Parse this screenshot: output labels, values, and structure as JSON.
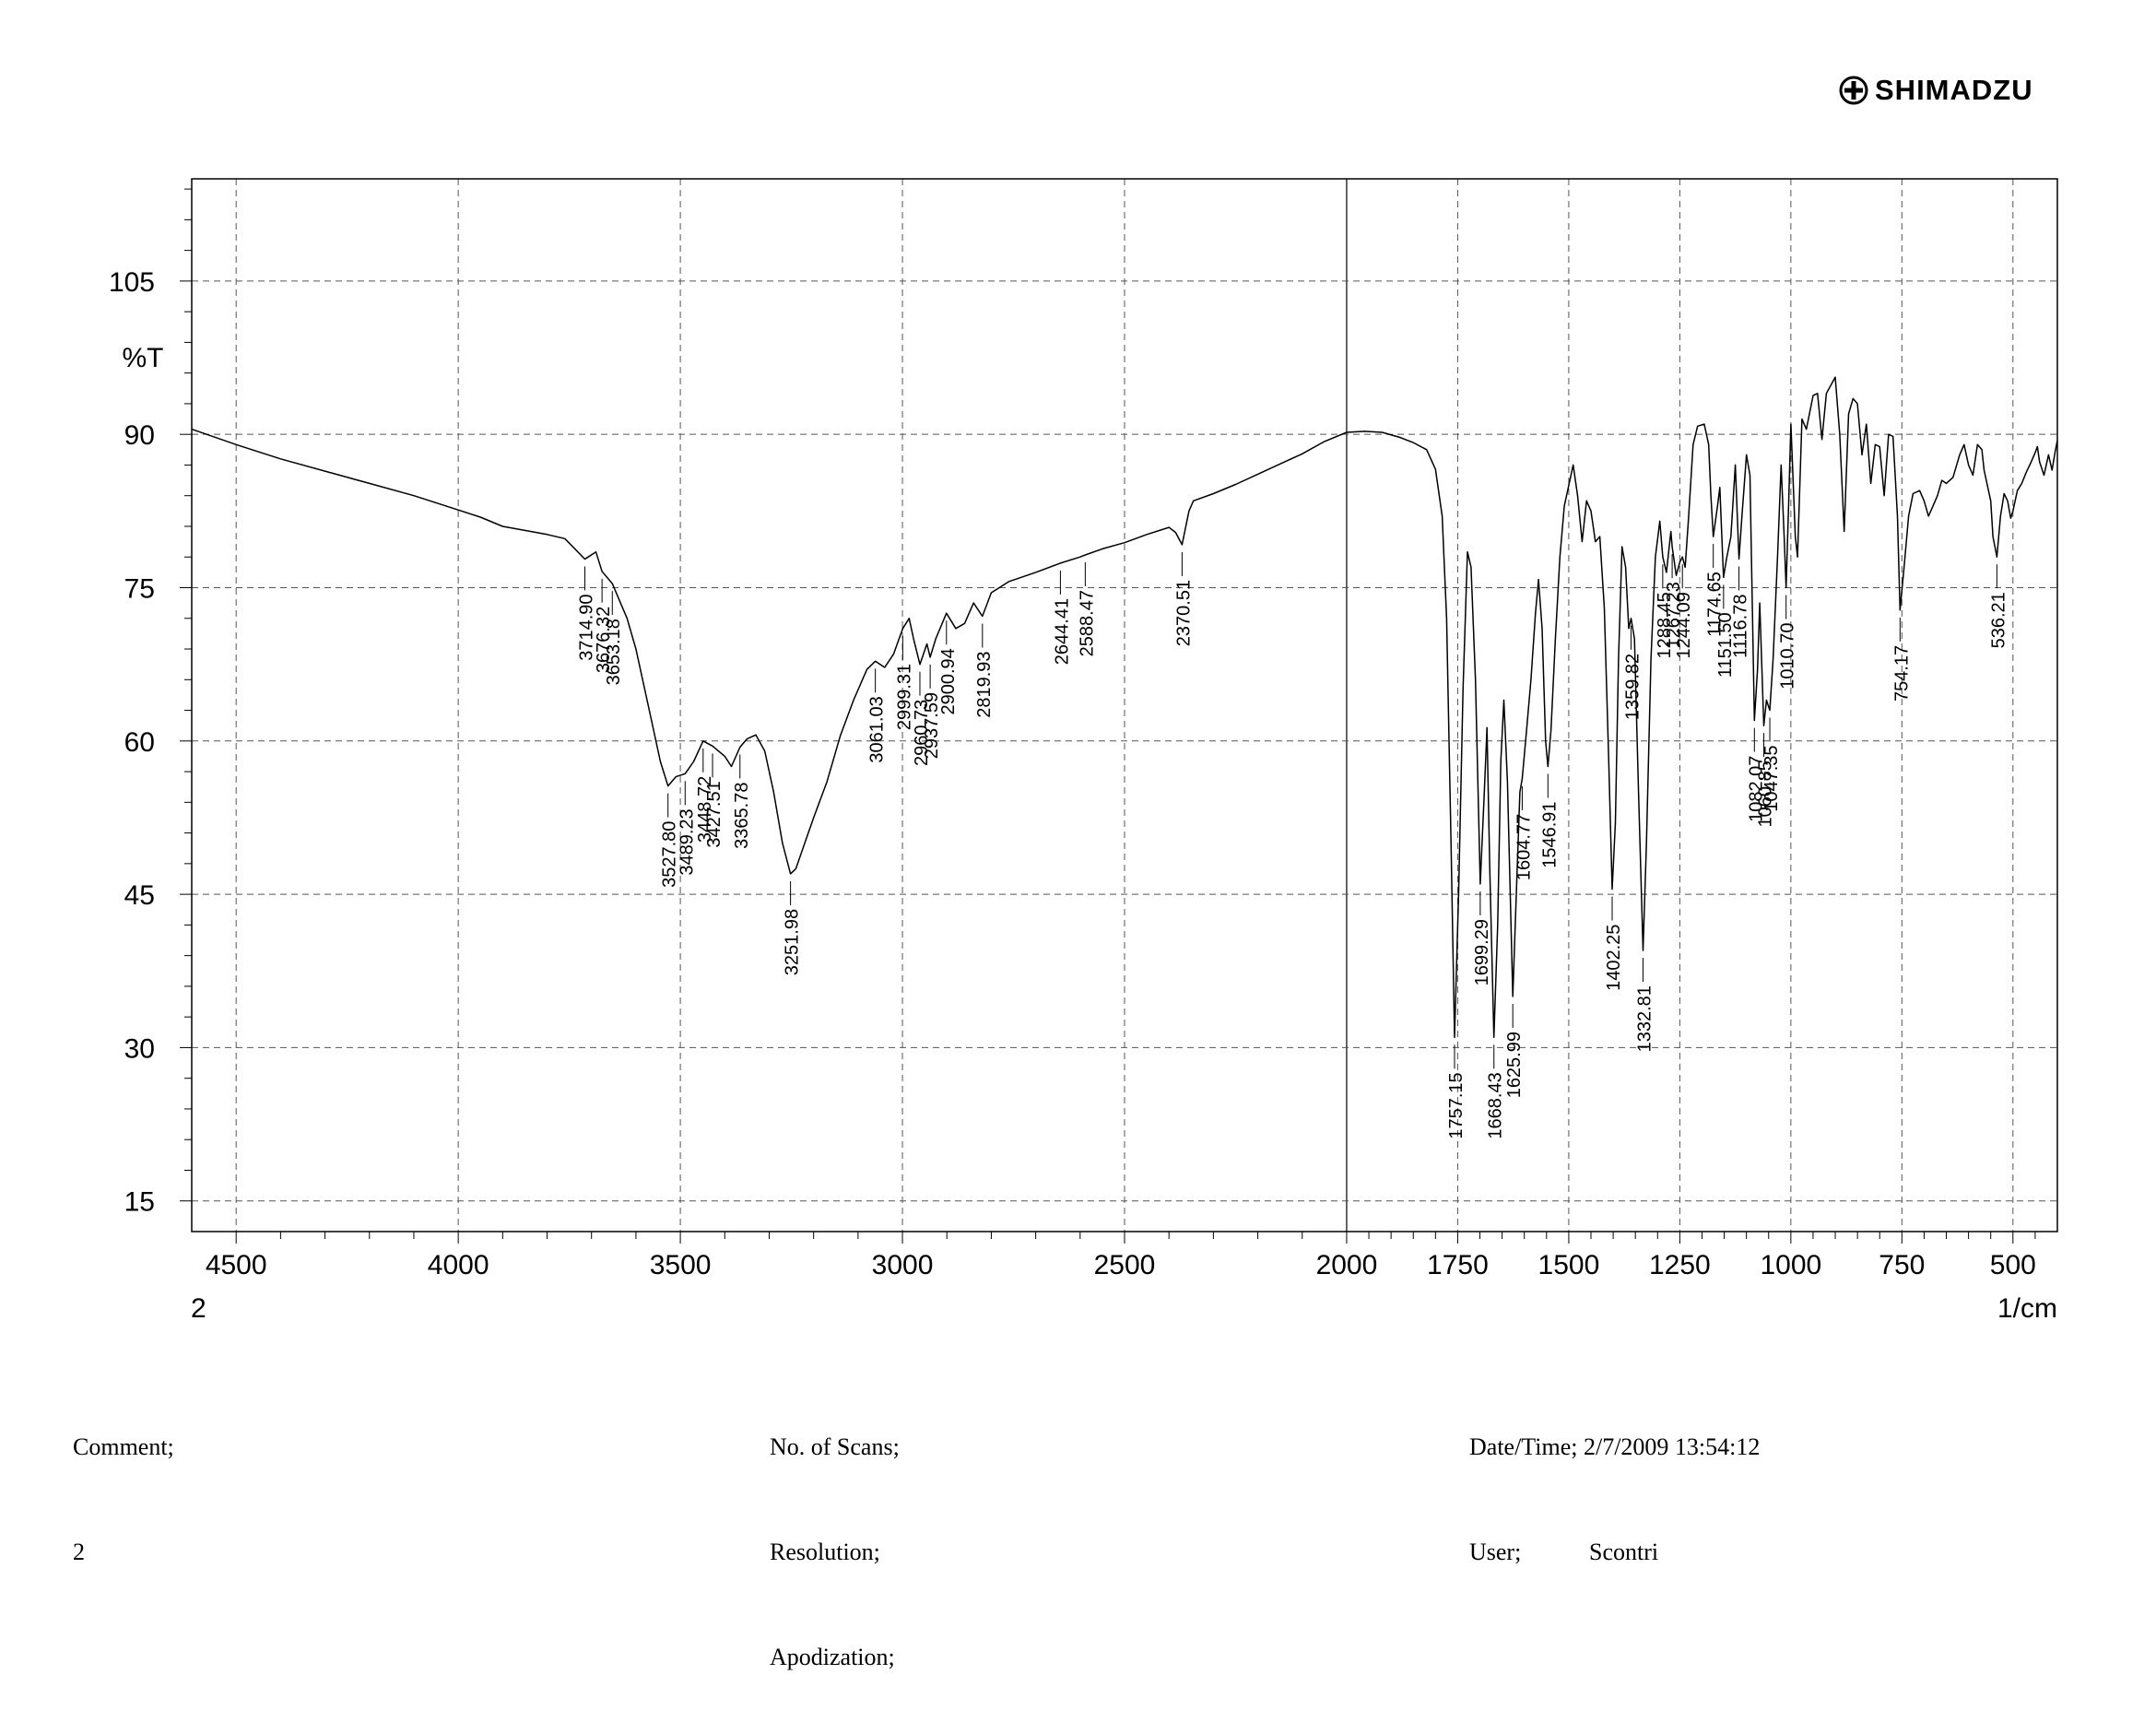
{
  "brand": {
    "name": "SHIMADZU"
  },
  "footer": {
    "comment_label": "Comment;",
    "comment_value": "2",
    "scans_label": "No. of Scans;",
    "resolution_label": "Resolution;",
    "apodization_label": "Apodization;",
    "datetime_label": "Date/Time;",
    "datetime_value": "2/7/2009 13:54:12",
    "user_label": "User;",
    "user_value": "Scontri"
  },
  "chart_data": {
    "type": "line",
    "title": "",
    "xlabel": "1/cm",
    "ylabel": "%T",
    "sample_label": "2",
    "xlim": [
      4600,
      400
    ],
    "ylim": [
      12,
      115
    ],
    "x_reversed": true,
    "grid": true,
    "grid_style": "dashed",
    "x_ticks": [
      4500,
      4000,
      3500,
      3000,
      2500,
      2000,
      1750,
      1500,
      1250,
      1000,
      750,
      500
    ],
    "y_ticks": [
      15,
      30,
      45,
      60,
      75,
      90,
      105
    ],
    "series": [
      {
        "points": [
          [
            4600,
            90.5
          ],
          [
            4500,
            89
          ],
          [
            4400,
            87.6
          ],
          [
            4300,
            86.4
          ],
          [
            4200,
            85.2
          ],
          [
            4100,
            84
          ],
          [
            4000,
            82.6
          ],
          [
            3950,
            81.9
          ],
          [
            3900,
            81
          ],
          [
            3850,
            80.6
          ],
          [
            3800,
            80.2
          ],
          [
            3760,
            79.8
          ],
          [
            3714.9,
            77.8
          ],
          [
            3690,
            78.5
          ],
          [
            3676.32,
            76.6
          ],
          [
            3653.18,
            75.4
          ],
          [
            3620,
            72
          ],
          [
            3600,
            69
          ],
          [
            3570,
            63
          ],
          [
            3545,
            58
          ],
          [
            3527.8,
            55.6
          ],
          [
            3510,
            56.5
          ],
          [
            3489.23,
            56.8
          ],
          [
            3470,
            58
          ],
          [
            3448.72,
            60
          ],
          [
            3427.51,
            59.5
          ],
          [
            3400,
            58.5
          ],
          [
            3385,
            57.5
          ],
          [
            3365.78,
            59.4
          ],
          [
            3350,
            60.2
          ],
          [
            3330,
            60.6
          ],
          [
            3310,
            59
          ],
          [
            3290,
            55
          ],
          [
            3270,
            50
          ],
          [
            3251.98,
            47
          ],
          [
            3240,
            47.5
          ],
          [
            3220,
            50
          ],
          [
            3200,
            52.5
          ],
          [
            3170,
            56
          ],
          [
            3140,
            60.5
          ],
          [
            3110,
            64
          ],
          [
            3080,
            67
          ],
          [
            3061.03,
            67.8
          ],
          [
            3040,
            67.2
          ],
          [
            3020,
            68.5
          ],
          [
            2999.31,
            71
          ],
          [
            2985,
            72
          ],
          [
            2975,
            70
          ],
          [
            2960.73,
            67.5
          ],
          [
            2945,
            69.5
          ],
          [
            2937.59,
            68.2
          ],
          [
            2925,
            70
          ],
          [
            2900.94,
            72.5
          ],
          [
            2880,
            71
          ],
          [
            2860,
            71.5
          ],
          [
            2840,
            73.5
          ],
          [
            2819.93,
            72.2
          ],
          [
            2800,
            74.5
          ],
          [
            2760,
            75.6
          ],
          [
            2700,
            76.5
          ],
          [
            2644.41,
            77.4
          ],
          [
            2600,
            78
          ],
          [
            2588.47,
            78.2
          ],
          [
            2550,
            78.8
          ],
          [
            2500,
            79.4
          ],
          [
            2450,
            80.2
          ],
          [
            2400,
            80.9
          ],
          [
            2385,
            80.4
          ],
          [
            2370.51,
            79.2
          ],
          [
            2355,
            82.5
          ],
          [
            2345,
            83.5
          ],
          [
            2300,
            84.2
          ],
          [
            2250,
            85.1
          ],
          [
            2200,
            86.1
          ],
          [
            2150,
            87.1
          ],
          [
            2100,
            88.1
          ],
          [
            2050,
            89.3
          ],
          [
            2000,
            90.2
          ],
          [
            1960,
            90.3
          ],
          [
            1920,
            90.2
          ],
          [
            1880,
            89.7
          ],
          [
            1850,
            89.2
          ],
          [
            1820,
            88.5
          ],
          [
            1800,
            86.6
          ],
          [
            1785,
            82
          ],
          [
            1775,
            72
          ],
          [
            1765,
            50
          ],
          [
            1757.15,
            31
          ],
          [
            1748,
            45
          ],
          [
            1738,
            65
          ],
          [
            1728,
            78.5
          ],
          [
            1720,
            77
          ],
          [
            1710,
            66
          ],
          [
            1699.29,
            46
          ],
          [
            1690,
            55
          ],
          [
            1684,
            61.3
          ],
          [
            1678,
            48
          ],
          [
            1668.43,
            31
          ],
          [
            1660,
            42
          ],
          [
            1653,
            58
          ],
          [
            1646,
            64
          ],
          [
            1638,
            56
          ],
          [
            1625.99,
            35
          ],
          [
            1618,
            45
          ],
          [
            1610,
            55
          ],
          [
            1604.77,
            56.3
          ],
          [
            1595,
            61
          ],
          [
            1585,
            66
          ],
          [
            1575,
            72.5
          ],
          [
            1568,
            75.8
          ],
          [
            1560,
            71
          ],
          [
            1552,
            60
          ],
          [
            1546.91,
            57.5
          ],
          [
            1540,
            61
          ],
          [
            1530,
            70
          ],
          [
            1520,
            78
          ],
          [
            1510,
            83
          ],
          [
            1500,
            85
          ],
          [
            1490,
            87
          ],
          [
            1480,
            84
          ],
          [
            1470,
            79.5
          ],
          [
            1460,
            83.5
          ],
          [
            1450,
            82.5
          ],
          [
            1440,
            79.5
          ],
          [
            1430,
            80
          ],
          [
            1420,
            73
          ],
          [
            1410,
            58
          ],
          [
            1402.25,
            45.5
          ],
          [
            1395,
            52
          ],
          [
            1388,
            68
          ],
          [
            1380,
            79
          ],
          [
            1372,
            77
          ],
          [
            1365,
            71
          ],
          [
            1359.82,
            72
          ],
          [
            1352,
            70
          ],
          [
            1343,
            55
          ],
          [
            1332.81,
            39.5
          ],
          [
            1325,
            50
          ],
          [
            1315,
            68
          ],
          [
            1305,
            78
          ],
          [
            1295,
            81.5
          ],
          [
            1288.45,
            78
          ],
          [
            1280,
            76.5
          ],
          [
            1270,
            80.5
          ],
          [
            1267.23,
            79
          ],
          [
            1258,
            76.2
          ],
          [
            1250,
            77.5
          ],
          [
            1244.09,
            78
          ],
          [
            1238,
            77
          ],
          [
            1230,
            82
          ],
          [
            1220,
            89
          ],
          [
            1210,
            90.8
          ],
          [
            1195,
            91
          ],
          [
            1185,
            89
          ],
          [
            1180,
            84
          ],
          [
            1174.65,
            80
          ],
          [
            1165,
            83
          ],
          [
            1160,
            84.8
          ],
          [
            1151.5,
            76
          ],
          [
            1145,
            77.8
          ],
          [
            1135,
            80
          ],
          [
            1125,
            87
          ],
          [
            1116.78,
            77.8
          ],
          [
            1110,
            82
          ],
          [
            1100,
            88
          ],
          [
            1092,
            86
          ],
          [
            1082.07,
            62
          ],
          [
            1075,
            67
          ],
          [
            1070,
            73.5
          ],
          [
            1060.85,
            61.5
          ],
          [
            1055,
            64
          ],
          [
            1047.35,
            63
          ],
          [
            1040,
            68
          ],
          [
            1030,
            78
          ],
          [
            1022,
            87
          ],
          [
            1015,
            80
          ],
          [
            1010.7,
            75
          ],
          [
            1005,
            83
          ],
          [
            1000,
            91
          ],
          [
            990,
            80
          ],
          [
            985,
            78
          ],
          [
            975,
            91.5
          ],
          [
            965,
            90.5
          ],
          [
            950,
            93.8
          ],
          [
            940,
            94
          ],
          [
            930,
            89.5
          ],
          [
            920,
            94
          ],
          [
            900,
            95.6
          ],
          [
            890,
            90
          ],
          [
            880,
            80.5
          ],
          [
            870,
            92
          ],
          [
            860,
            93.5
          ],
          [
            850,
            93
          ],
          [
            840,
            88
          ],
          [
            830,
            91
          ],
          [
            820,
            85.2
          ],
          [
            810,
            89
          ],
          [
            800,
            88.8
          ],
          [
            790,
            84
          ],
          [
            780,
            90
          ],
          [
            770,
            89.8
          ],
          [
            760,
            82
          ],
          [
            754.17,
            72.8
          ],
          [
            745,
            77
          ],
          [
            735,
            82
          ],
          [
            725,
            84.2
          ],
          [
            710,
            84.5
          ],
          [
            700,
            83.5
          ],
          [
            690,
            82
          ],
          [
            680,
            83
          ],
          [
            670,
            84
          ],
          [
            660,
            85.5
          ],
          [
            650,
            85.2
          ],
          [
            635,
            85.8
          ],
          [
            620,
            88
          ],
          [
            610,
            89
          ],
          [
            600,
            87
          ],
          [
            590,
            86
          ],
          [
            580,
            89
          ],
          [
            570,
            88.5
          ],
          [
            565,
            86.5
          ],
          [
            560,
            85.5
          ],
          [
            550,
            83.5
          ],
          [
            545,
            80
          ],
          [
            536.21,
            78
          ],
          [
            528,
            82
          ],
          [
            520,
            84.2
          ],
          [
            512,
            83.5
          ],
          [
            505,
            81.8
          ],
          [
            500,
            82.5
          ],
          [
            490,
            84.5
          ],
          [
            480,
            85.2
          ],
          [
            470,
            86.3
          ],
          [
            460,
            87.2
          ],
          [
            450,
            88.2
          ],
          [
            445,
            88.8
          ],
          [
            440,
            87.3
          ],
          [
            430,
            86
          ],
          [
            420,
            88
          ],
          [
            412,
            86.5
          ],
          [
            405,
            88.3
          ],
          [
            400,
            89.4
          ]
        ]
      }
    ],
    "peak_labels": [
      {
        "x": 3714.9,
        "label": "3714.90"
      },
      {
        "x": 3676.32,
        "label": "3676.32"
      },
      {
        "x": 3653.18,
        "label": "3653.18"
      },
      {
        "x": 3527.8,
        "label": "3527.80"
      },
      {
        "x": 3489.23,
        "label": "3489.23"
      },
      {
        "x": 3448.72,
        "label": "3448.72"
      },
      {
        "x": 3427.51,
        "label": "3427.51"
      },
      {
        "x": 3365.78,
        "label": "3365.78"
      },
      {
        "x": 3251.98,
        "label": "3251.98"
      },
      {
        "x": 3061.03,
        "label": "3061.03"
      },
      {
        "x": 2999.31,
        "label": "2999.31"
      },
      {
        "x": 2960.73,
        "label": "2960.73"
      },
      {
        "x": 2937.59,
        "label": "2937.59"
      },
      {
        "x": 2900.94,
        "label": "2900.94"
      },
      {
        "x": 2819.93,
        "label": "2819.93"
      },
      {
        "x": 2644.41,
        "label": "2644.41"
      },
      {
        "x": 2588.47,
        "label": "2588.47"
      },
      {
        "x": 2370.51,
        "label": "2370.51"
      },
      {
        "x": 1757.15,
        "label": "1757.15"
      },
      {
        "x": 1699.29,
        "label": "1699.29"
      },
      {
        "x": 1668.43,
        "label": "1668.43"
      },
      {
        "x": 1625.99,
        "label": "1625.99"
      },
      {
        "x": 1604.77,
        "label": "1604.77"
      },
      {
        "x": 1546.91,
        "label": "1546.91"
      },
      {
        "x": 1402.25,
        "label": "1402.25"
      },
      {
        "x": 1359.82,
        "label": "1359.82"
      },
      {
        "x": 1332.81,
        "label": "1332.81"
      },
      {
        "x": 1288.45,
        "label": "1288.45"
      },
      {
        "x": 1267.23,
        "label": "1267.23"
      },
      {
        "x": 1244.09,
        "label": "1244.09"
      },
      {
        "x": 1174.65,
        "label": "1174.65"
      },
      {
        "x": 1151.5,
        "label": "1151.50"
      },
      {
        "x": 1116.78,
        "label": "1116.78"
      },
      {
        "x": 1082.07,
        "label": "1082.07"
      },
      {
        "x": 1060.85,
        "label": "1060.85"
      },
      {
        "x": 1047.35,
        "label": "1047.35"
      },
      {
        "x": 1010.7,
        "label": "1010.70"
      },
      {
        "x": 754.17,
        "label": "754.17"
      },
      {
        "x": 536.21,
        "label": "536.21"
      }
    ]
  }
}
